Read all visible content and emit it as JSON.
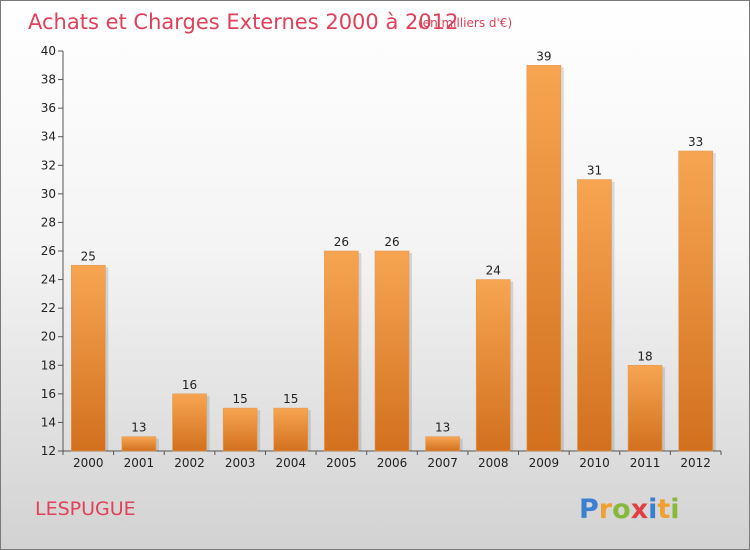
{
  "chart_data": {
    "type": "bar",
    "title": "Achats et Charges Externes 2000 à 2012",
    "subtitle": "(en milliers d'€)",
    "categories": [
      "2000",
      "2001",
      "2002",
      "2003",
      "2004",
      "2005",
      "2006",
      "2007",
      "2008",
      "2009",
      "2010",
      "2011",
      "2012"
    ],
    "values": [
      25,
      13,
      16,
      15,
      15,
      26,
      26,
      13,
      24,
      39,
      31,
      18,
      33
    ],
    "data_labels": [
      "25",
      "13",
      "16",
      "15",
      "15",
      "26",
      "26",
      "13",
      "24",
      "39",
      "31",
      "18",
      "33"
    ],
    "yticks": [
      "12",
      "14",
      "16",
      "18",
      "20",
      "22",
      "24",
      "26",
      "28",
      "30",
      "32",
      "34",
      "36",
      "38",
      "40"
    ],
    "ylim": [
      12,
      40
    ],
    "grid": false,
    "bar_color_top": "#f7a552",
    "bar_color_bottom": "#d2701e",
    "xlabel": "",
    "ylabel": ""
  },
  "commune": "LESPUGUE",
  "logo": {
    "letters": [
      "P",
      "r",
      "o",
      "x",
      "i",
      "t",
      "i"
    ],
    "colors": [
      "#3a7fd0",
      "#f0a030",
      "#88b83a",
      "#e04040",
      "#3a7fd0",
      "#f0a030",
      "#88b83a"
    ]
  }
}
